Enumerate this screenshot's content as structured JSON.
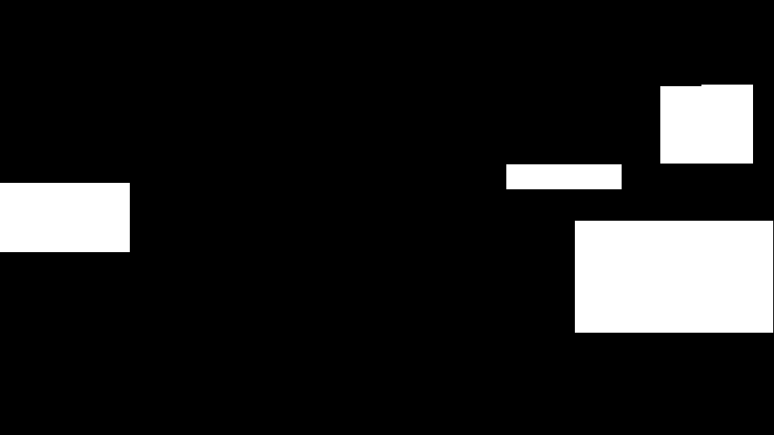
{
  "screen": {
    "background_color": "#000000",
    "panel_color": "#ffffff",
    "accent_color": "#000000"
  },
  "panels": {
    "left": {
      "text": ""
    },
    "top_right": {
      "text": ""
    },
    "middle_right": {
      "text": ""
    },
    "bottom_right": {
      "text": ""
    }
  }
}
